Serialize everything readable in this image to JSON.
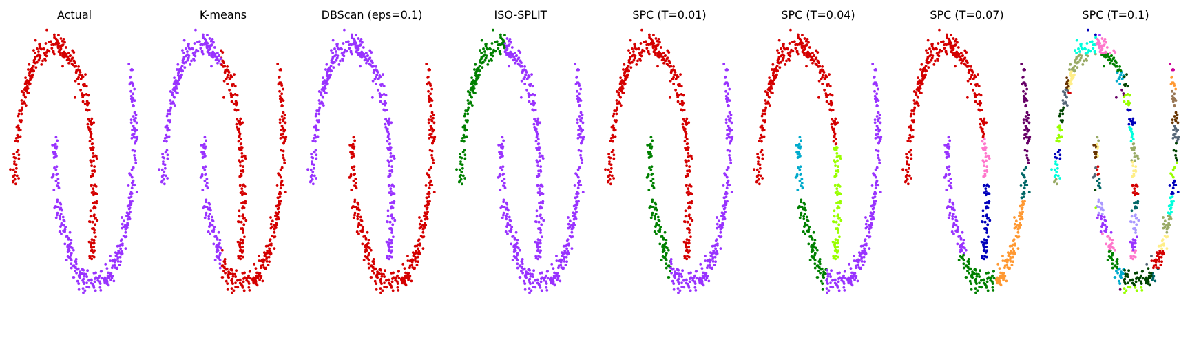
{
  "chart_data": [
    {
      "type": "scatter",
      "title": "Actual",
      "n_points": 700,
      "coloring": "actual",
      "clusters": 2
    },
    {
      "type": "scatter",
      "title": "K-means",
      "n_points": 700,
      "coloring": "kmeans",
      "clusters": 2
    },
    {
      "type": "scatter",
      "title": "DBScan (eps=0.1)",
      "n_points": 700,
      "coloring": "dbscan",
      "clusters": 2
    },
    {
      "type": "scatter",
      "title": "ISO-SPLIT",
      "n_points": 700,
      "coloring": "isosplit",
      "clusters": 2
    },
    {
      "type": "scatter",
      "title": "SPC (T=0.01)",
      "n_points": 700,
      "coloring": "spc1",
      "clusters": 3
    },
    {
      "type": "scatter",
      "title": "SPC (T=0.04)",
      "n_points": 700,
      "coloring": "spc2",
      "clusters": 5
    },
    {
      "type": "scatter",
      "title": "SPC (T=0.07)",
      "n_points": 700,
      "coloring": "spc3",
      "clusters": 12
    },
    {
      "type": "scatter",
      "title": "SPC (T=0.1)",
      "n_points": 700,
      "coloring": "spc4",
      "clusters": 25
    }
  ],
  "colors": {
    "red": "#d40000",
    "purple": "#9933ff",
    "green": "#008000",
    "cyan": "#00aacc",
    "lime": "#99ff00",
    "pink": "#ff77cc",
    "darkblue": "#0000bb",
    "orange": "#ff9933",
    "brown": "#663300",
    "teal": "#006666",
    "magenta": "#cc0099",
    "darkmagenta": "#660066",
    "aqua": "#00ffdd",
    "olive": "#99aa66",
    "lightyellow": "#ffee88",
    "tan": "#997755",
    "darkgreen": "#004400",
    "slate": "#556677",
    "lavender": "#aa99ff"
  }
}
